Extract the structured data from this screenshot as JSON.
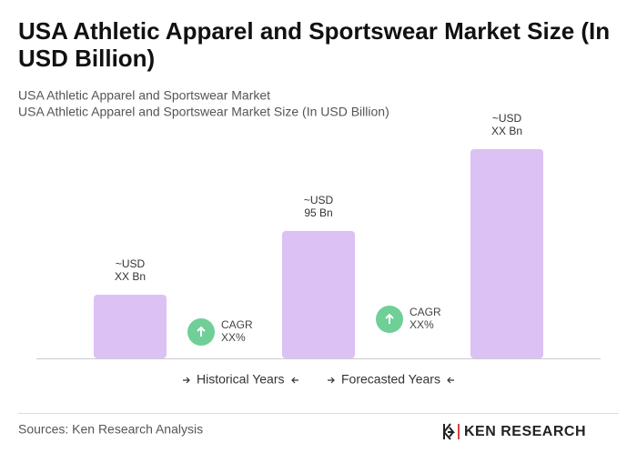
{
  "chart_data": {
    "type": "bar",
    "title": [
      "USA Athletic Apparel and Sportswear Market Size (In",
      "USD Billion)"
    ],
    "subtitles": [
      "USA Athletic Apparel and Sportswear Market",
      "USA Athletic Apparel and Sportswear Market Size (In USD Billion)"
    ],
    "categories": [
      null,
      null,
      null
    ],
    "values": [
      47.5,
      95,
      156
    ],
    "value_labels": [
      [
        "~USD",
        "XX Bn"
      ],
      [
        "~USD",
        "95 Bn"
      ],
      [
        "~USD",
        "XX Bn"
      ]
    ],
    "color": "#dcc1f5",
    "annotations": [
      {
        "label": "CAGR",
        "value": "XX%"
      },
      {
        "label": "CAGR",
        "value": "XX%"
      }
    ],
    "periods": [
      "Historical Years",
      "Forecasted Years"
    ],
    "source": "Sources: Ken Research Analysis",
    "brand": "KEN RESEARCH"
  }
}
